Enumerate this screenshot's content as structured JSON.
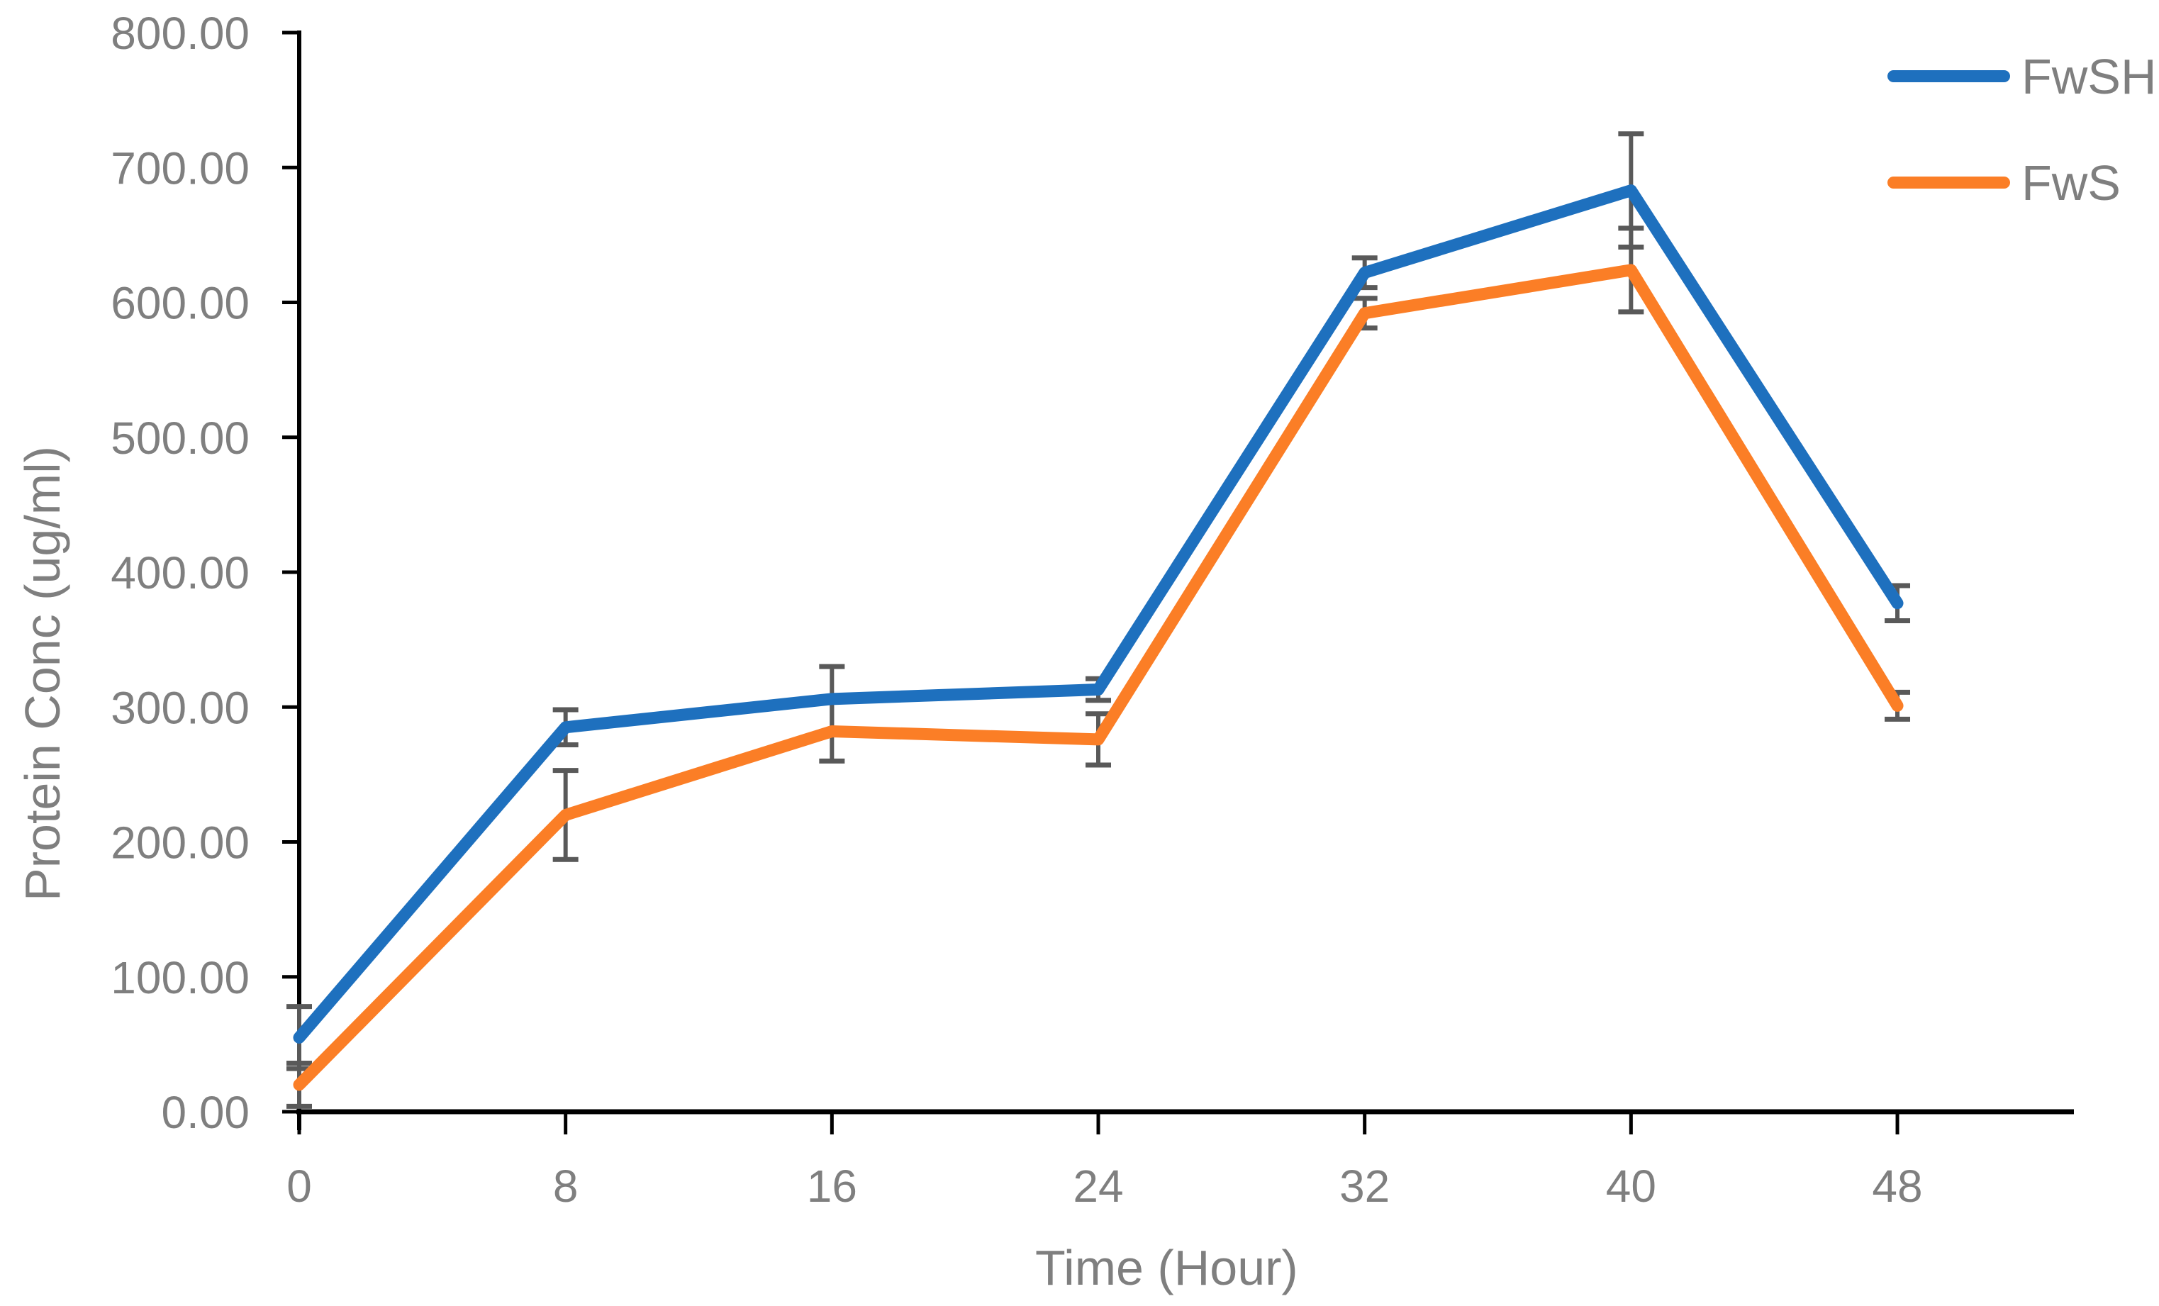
{
  "chart_data": {
    "type": "line",
    "title": "",
    "xlabel": "Time (Hour)",
    "ylabel": "Protein Conc (ug/ml)",
    "x": [
      0,
      8,
      16,
      24,
      32,
      40,
      48
    ],
    "x_tick_labels": [
      "0",
      "8",
      "16",
      "24",
      "32",
      "40",
      "48"
    ],
    "y_ticks": [
      0,
      100,
      200,
      300,
      400,
      500,
      600,
      700,
      800
    ],
    "y_tick_labels": [
      "0.00",
      "100.00",
      "200.00",
      "300.00",
      "400.00",
      "500.00",
      "600.00",
      "700.00",
      "800.00"
    ],
    "ylim": [
      0,
      800
    ],
    "grid": false,
    "legend_position": "top-right",
    "error_bars": true,
    "axis_color": "#000000",
    "error_bar_color": "#595959",
    "text_color": "#7F7F7F",
    "series": [
      {
        "name": "FwSH",
        "color": "#1E70BE",
        "values": [
          55,
          285,
          306,
          313,
          622,
          683,
          377
        ],
        "error": [
          23,
          13,
          24,
          8,
          11,
          42,
          13
        ]
      },
      {
        "name": "FwS",
        "color": "#FB7E26",
        "values": [
          20,
          220,
          282,
          276,
          592,
          624,
          301
        ],
        "error": [
          16,
          33,
          22,
          19,
          11,
          31,
          10
        ]
      }
    ]
  }
}
